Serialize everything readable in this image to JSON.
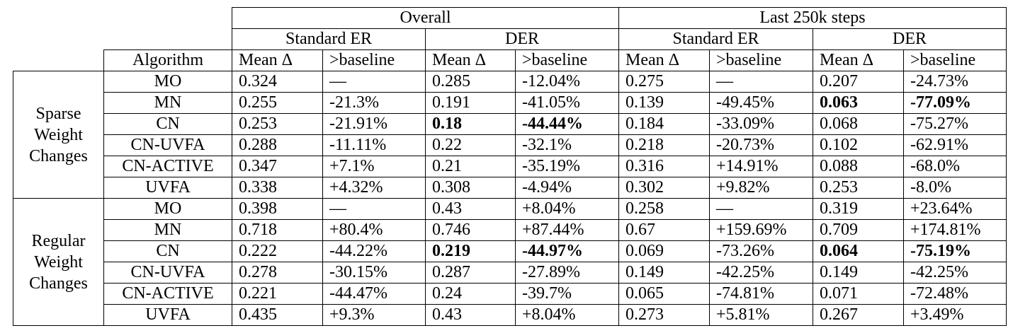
{
  "header": {
    "overall": "Overall",
    "last": "Last 250k steps",
    "standard_er": "Standard ER",
    "der": "DER",
    "algorithm": "Algorithm",
    "mean_delta": "Mean Δ",
    "gt_baseline": ">baseline"
  },
  "groups": [
    {
      "label_lines": [
        "Sparse",
        "Weight",
        "Changes"
      ],
      "rows": [
        {
          "alg": "MO",
          "vals": [
            "0.324",
            "—",
            "0.285",
            "-12.04%",
            "0.275",
            "—",
            "0.207",
            "-24.73%"
          ],
          "bold": []
        },
        {
          "alg": "MN",
          "vals": [
            "0.255",
            "-21.3%",
            "0.191",
            "-41.05%",
            "0.139",
            "-49.45%",
            "0.063",
            "-77.09%"
          ],
          "bold": [
            6,
            7
          ]
        },
        {
          "alg": "CN",
          "vals": [
            "0.253",
            "-21.91%",
            "0.18",
            "-44.44%",
            "0.184",
            "-33.09%",
            "0.068",
            "-75.27%"
          ],
          "bold": [
            2,
            3
          ]
        },
        {
          "alg": "CN-UVFA",
          "vals": [
            "0.288",
            "-11.11%",
            "0.22",
            "-32.1%",
            "0.218",
            "-20.73%",
            "0.102",
            "-62.91%"
          ],
          "bold": []
        },
        {
          "alg": "CN-ACTIVE",
          "vals": [
            "0.347",
            "+7.1%",
            "0.21",
            "-35.19%",
            "0.316",
            "+14.91%",
            "0.088",
            "-68.0%"
          ],
          "bold": []
        },
        {
          "alg": "UVFA",
          "vals": [
            "0.338",
            "+4.32%",
            "0.308",
            "-4.94%",
            "0.302",
            "+9.82%",
            "0.253",
            "-8.0%"
          ],
          "bold": []
        }
      ]
    },
    {
      "label_lines": [
        "Regular",
        "Weight",
        "Changes"
      ],
      "rows": [
        {
          "alg": "MO",
          "vals": [
            "0.398",
            "—",
            "0.43",
            "+8.04%",
            "0.258",
            "—",
            "0.319",
            "+23.64%"
          ],
          "bold": []
        },
        {
          "alg": "MN",
          "vals": [
            "0.718",
            "+80.4%",
            "0.746",
            "+87.44%",
            "0.67",
            "+159.69%",
            "0.709",
            "+174.81%"
          ],
          "bold": []
        },
        {
          "alg": "CN",
          "vals": [
            "0.222",
            "-44.22%",
            "0.219",
            "-44.97%",
            "0.069",
            "-73.26%",
            "0.064",
            "-75.19%"
          ],
          "bold": [
            2,
            3,
            6,
            7
          ]
        },
        {
          "alg": "CN-UVFA",
          "vals": [
            "0.278",
            "-30.15%",
            "0.287",
            "-27.89%",
            "0.149",
            "-42.25%",
            "0.149",
            "-42.25%"
          ],
          "bold": []
        },
        {
          "alg": "CN-ACTIVE",
          "vals": [
            "0.221",
            "-44.47%",
            "0.24",
            "-39.7%",
            "0.065",
            "-74.81%",
            "0.071",
            "-72.48%"
          ],
          "bold": []
        },
        {
          "alg": "UVFA",
          "vals": [
            "0.435",
            "+9.3%",
            "0.43",
            "+8.04%",
            "0.273",
            "+5.81%",
            "0.267",
            "+3.49%"
          ],
          "bold": []
        }
      ]
    }
  ]
}
